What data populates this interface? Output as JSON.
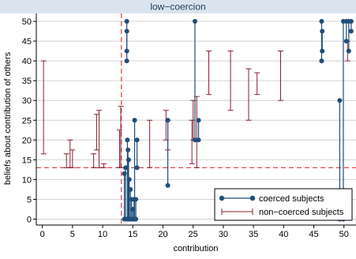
{
  "panel_title": "low−coercion",
  "chart_data": {
    "type": "scatter",
    "title": "low−coercion",
    "xlabel": "contribution",
    "ylabel": "beliefs about contribution of others",
    "xlim": [
      -1,
      52
    ],
    "ylim": [
      -1.5,
      52
    ],
    "xticks": [
      0,
      5,
      10,
      15,
      20,
      25,
      30,
      35,
      40,
      45,
      50
    ],
    "yticks": [
      0,
      5,
      10,
      15,
      20,
      25,
      30,
      35,
      40,
      45,
      50
    ],
    "grid": "horizontal",
    "reference_lines": [
      {
        "axis": "x",
        "value": 13.1,
        "style": "dashed",
        "color": "#e0464b"
      },
      {
        "axis": "y",
        "value": 13,
        "style": "dashed",
        "color": "#e0464b"
      }
    ],
    "legend": {
      "position": "bottom-right",
      "entries": [
        "coerced subjects",
        "non−coerced subjects"
      ]
    },
    "series": [
      {
        "name": "coerced subjects",
        "kind": "range-dot",
        "color": "#1f4e79",
        "ranges": [
          [
            13.6,
            0,
            11.5
          ],
          [
            13.8,
            0,
            13
          ],
          [
            14.0,
            40,
            50
          ],
          [
            14.0,
            42.5,
            47.5
          ],
          [
            14.1,
            0,
            20
          ],
          [
            14.2,
            0,
            17.5
          ],
          [
            14.3,
            0,
            15
          ],
          [
            14.4,
            0,
            10
          ],
          [
            14.6,
            0,
            7.5
          ],
          [
            14.8,
            0,
            5
          ],
          [
            15.0,
            0,
            2.5
          ],
          [
            15.2,
            0,
            5
          ],
          [
            15.3,
            0,
            25
          ],
          [
            15.5,
            0,
            5
          ],
          [
            15.7,
            13,
            20
          ],
          [
            20.8,
            8.5,
            25
          ],
          [
            25.3,
            20,
            50
          ],
          [
            25.9,
            20,
            25
          ],
          [
            46.3,
            40,
            50
          ],
          [
            46.4,
            42.5,
            47.5
          ],
          [
            49.3,
            0,
            30
          ],
          [
            49.9,
            0,
            50
          ],
          [
            50.4,
            45,
            50
          ],
          [
            50.8,
            42.5,
            50
          ],
          [
            51.2,
            47.5,
            50
          ]
        ]
      },
      {
        "name": "non−coerced subjects",
        "kind": "range-cap",
        "color": "#8b1d2c",
        "ranges": [
          [
            0.2,
            16.5,
            40
          ],
          [
            4.0,
            13,
            16.5
          ],
          [
            4.6,
            13,
            20
          ],
          [
            5.0,
            13,
            17.5
          ],
          [
            8.5,
            13,
            16.5
          ],
          [
            9.0,
            17.5,
            26.5
          ],
          [
            9.4,
            13,
            27.5
          ],
          [
            10.2,
            13,
            14
          ],
          [
            12.8,
            13,
            22.5
          ],
          [
            13.0,
            13,
            28.5
          ],
          [
            17.8,
            13,
            25
          ],
          [
            20.5,
            20,
            27.5
          ],
          [
            20.8,
            17.5,
            25
          ],
          [
            24.8,
            14,
            25
          ],
          [
            25.0,
            20,
            30
          ],
          [
            25.6,
            13,
            31
          ],
          [
            27.6,
            31.5,
            42.5
          ],
          [
            31.2,
            27.5,
            42.5
          ],
          [
            34.2,
            25,
            38
          ],
          [
            35.6,
            31.5,
            37
          ],
          [
            39.5,
            30,
            42.5
          ],
          [
            50.6,
            40,
            45
          ]
        ]
      }
    ]
  }
}
